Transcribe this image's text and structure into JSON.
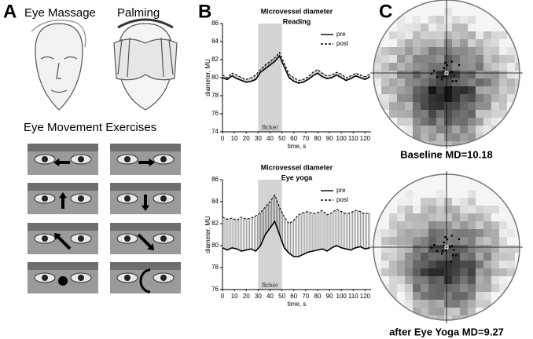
{
  "panels": {
    "a": {
      "label": "A",
      "massage": "Eye Massage",
      "palming": "Palming",
      "exercises": "Eye Movement Exercises"
    },
    "b": {
      "label": "B"
    },
    "c": {
      "label": "C",
      "baseline": "Baseline MD=10.18",
      "after": "after Eye Yoga MD=9.27"
    }
  },
  "chart_data": [
    {
      "type": "line",
      "title": "Microvessel diameter",
      "subtitle": "Reading",
      "x": [
        0,
        4,
        8,
        12,
        16,
        20,
        24,
        28,
        32,
        36,
        40,
        44,
        48,
        52,
        56,
        60,
        64,
        68,
        72,
        76,
        80,
        84,
        88,
        92,
        96,
        100,
        104,
        108,
        112,
        116,
        120,
        124
      ],
      "series": [
        {
          "name": "pre",
          "color": "#000000",
          "line_style": "solid",
          "values": [
            80.0,
            79.8,
            80.2,
            79.9,
            79.7,
            79.5,
            79.6,
            79.8,
            80.6,
            81.0,
            81.4,
            81.8,
            82.4,
            81.2,
            80.0,
            79.6,
            79.4,
            79.5,
            79.8,
            80.2,
            80.5,
            80.1,
            79.9,
            80.0,
            80.3,
            80.0,
            79.7,
            79.9,
            80.2,
            80.0,
            79.8,
            80.1
          ]
        },
        {
          "name": "post",
          "color": "#000000",
          "line_style": "dashed",
          "values": [
            80.3,
            80.0,
            80.5,
            80.3,
            80.0,
            79.8,
            80.0,
            80.3,
            80.9,
            81.4,
            81.8,
            82.2,
            82.8,
            81.6,
            80.4,
            80.0,
            79.7,
            79.8,
            80.1,
            80.6,
            80.9,
            80.5,
            80.2,
            80.3,
            80.6,
            80.4,
            80.0,
            80.2,
            80.5,
            80.3,
            80.1,
            80.4
          ]
        }
      ],
      "xlim": [
        0,
        125
      ],
      "xticks": [
        0,
        10,
        20,
        30,
        40,
        50,
        60,
        70,
        80,
        90,
        100,
        110,
        120
      ],
      "ylim": [
        74,
        86
      ],
      "yticks": [
        74,
        76,
        78,
        80,
        82,
        84,
        86
      ],
      "xlabel": "time, s",
      "ylabel": "diameter, MU",
      "shaded": {
        "label": "flicker",
        "span": [
          30,
          50
        ],
        "color": "#d3d3d3"
      }
    },
    {
      "type": "line",
      "title": "Microvessel diameter",
      "subtitle": "Eye yoga",
      "x": [
        0,
        4,
        8,
        12,
        16,
        20,
        24,
        28,
        32,
        36,
        40,
        44,
        48,
        52,
        56,
        60,
        64,
        68,
        72,
        76,
        80,
        84,
        88,
        92,
        96,
        100,
        104,
        108,
        112,
        116,
        120,
        124
      ],
      "series": [
        {
          "name": "pre",
          "color": "#000000",
          "line_style": "solid",
          "values": [
            79.8,
            79.6,
            79.8,
            79.7,
            79.5,
            79.6,
            79.7,
            79.5,
            80.0,
            81.0,
            81.6,
            82.2,
            81.0,
            79.8,
            79.3,
            79.0,
            79.0,
            79.2,
            79.4,
            79.5,
            79.6,
            79.7,
            79.5,
            79.8,
            80.0,
            79.8,
            79.7,
            79.6,
            79.8,
            79.9,
            79.7,
            79.8
          ]
        },
        {
          "name": "post",
          "color": "#000000",
          "line_style": "dashed",
          "values": [
            82.6,
            82.4,
            82.5,
            82.3,
            82.6,
            82.4,
            82.5,
            82.7,
            83.0,
            83.5,
            84.0,
            84.6,
            83.5,
            82.6,
            82.0,
            82.3,
            82.8,
            83.0,
            83.1,
            82.9,
            83.0,
            83.2,
            82.8,
            83.0,
            83.3,
            83.1,
            82.9,
            83.0,
            83.2,
            83.1,
            82.9,
            83.0
          ]
        }
      ],
      "xlim": [
        0,
        125
      ],
      "xticks": [
        0,
        10,
        20,
        30,
        40,
        50,
        60,
        70,
        80,
        90,
        100,
        110,
        120
      ],
      "ylim": [
        76,
        86
      ],
      "yticks": [
        76,
        78,
        80,
        82,
        84,
        86
      ],
      "xlabel": "time, s",
      "ylabel": "diameter, MU",
      "shaded": {
        "label": "flicker",
        "span": [
          30,
          50
        ],
        "color": "#d3d3d3"
      }
    }
  ]
}
